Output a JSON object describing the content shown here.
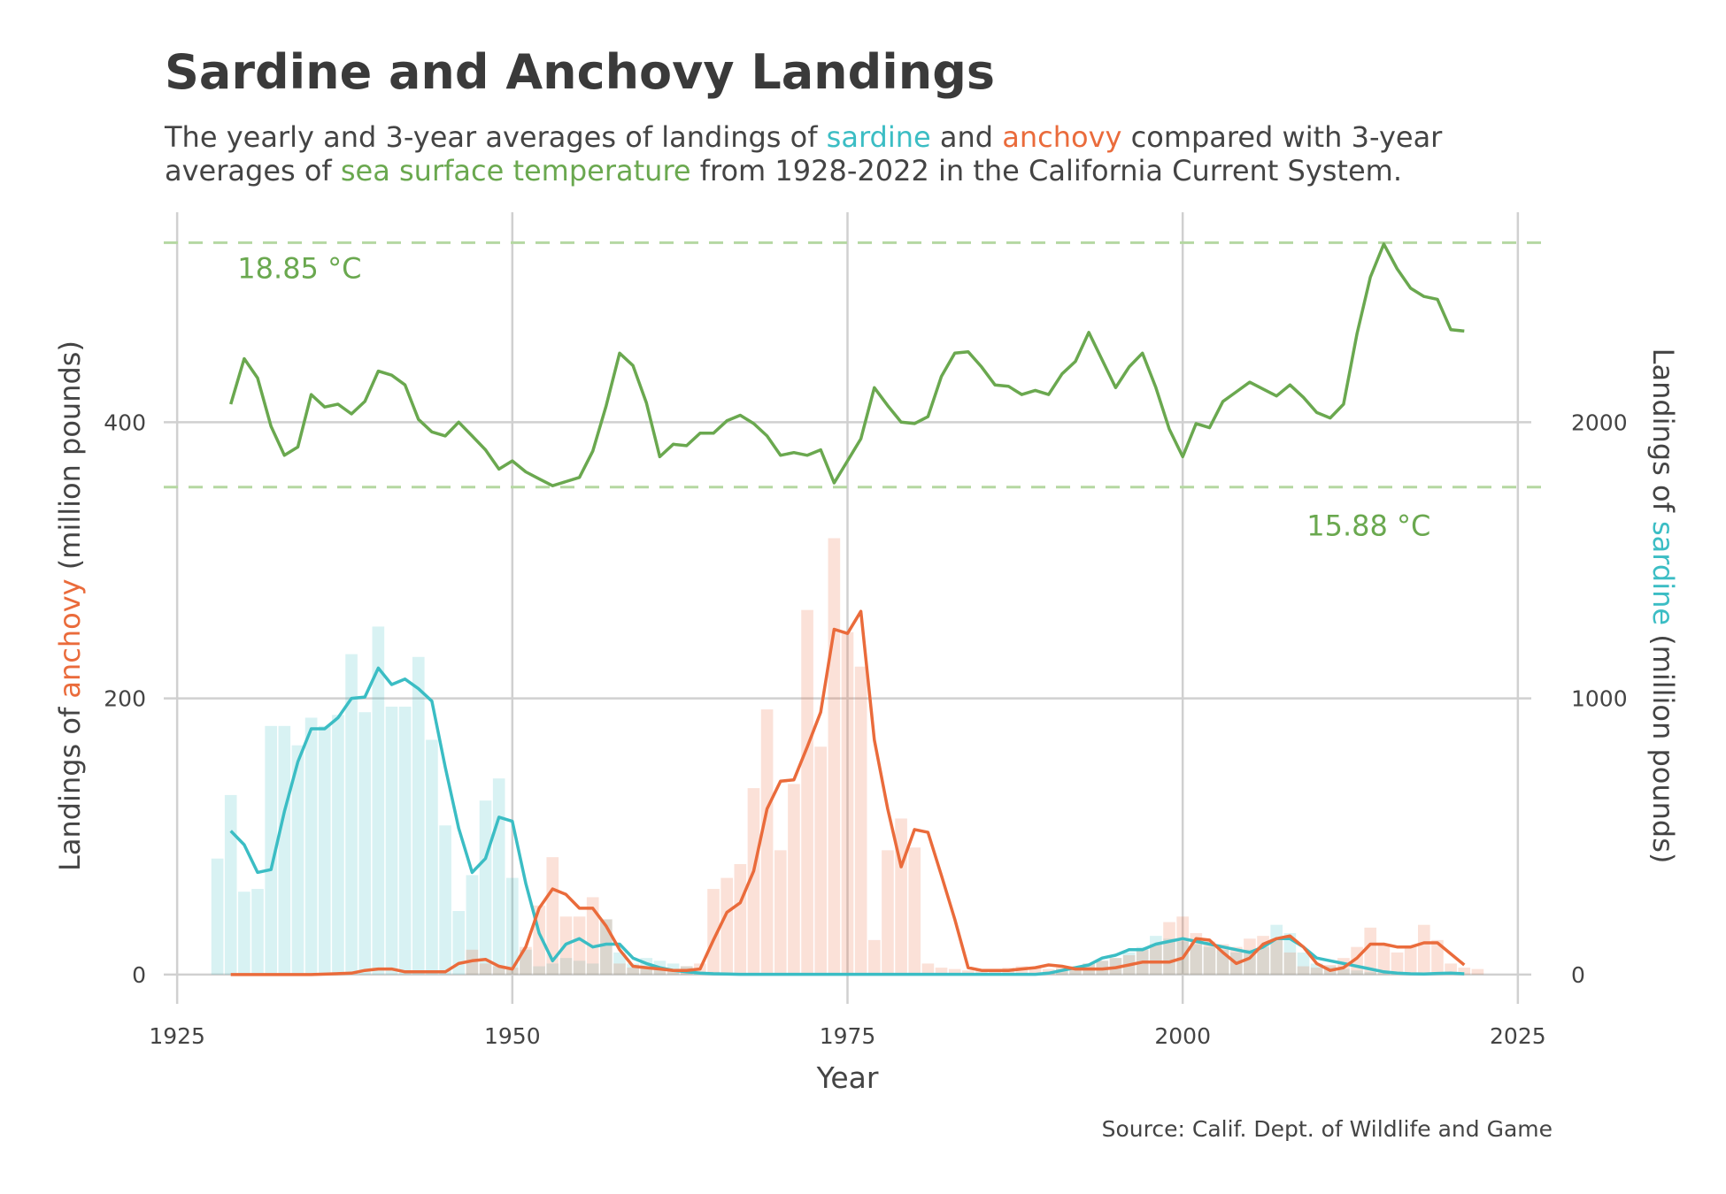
{
  "title": "Sardine and Anchovy Landings",
  "subtitle": {
    "p1": "The yearly and 3-year averages of landings of ",
    "sardine": "sardine",
    "p2": " and ",
    "anchovy": "anchovy",
    "p3": " compared with 3-year averages of ",
    "sst": "sea surface temperature",
    "p4": " from 1928-2022 in the California Current System."
  },
  "source": "Source: Calif. Dept. of Wildlife and Game",
  "colors": {
    "sardine": "#3bbdc4",
    "anchovy": "#ea6b3b",
    "sst": "#6aa84f",
    "sst_ref": "#b5d8a2",
    "grid": "#d0d0d0",
    "text": "#444444"
  },
  "chart_data": {
    "type": "bar+line",
    "xlabel": "Year",
    "ylabel_left": {
      "p1": "Landings of ",
      "hl": "anchovy",
      "p2": " (million pounds)"
    },
    "ylabel_right": {
      "p1": "Landings of ",
      "hl": "sardine",
      "p2": " (million pounds)"
    },
    "xlim": [
      1924,
      2026
    ],
    "ylim_left": [
      -18,
      552
    ],
    "ylim_right": [
      -90,
      2760
    ],
    "xticks": [
      1925,
      1950,
      1975,
      2000,
      2025
    ],
    "yticks_left": [
      0,
      200,
      400
    ],
    "yticks_right": [
      0,
      1000,
      2000
    ],
    "grid": true,
    "sst_reference_lines": [
      {
        "label": "18.85 °C",
        "y_left": 530
      },
      {
        "label": "15.88 °C",
        "y_left": 353
      }
    ],
    "sardine_yearly": {
      "years": [
        1928,
        1929,
        1930,
        1931,
        1932,
        1933,
        1934,
        1935,
        1936,
        1937,
        1938,
        1939,
        1940,
        1941,
        1942,
        1943,
        1944,
        1945,
        1946,
        1947,
        1948,
        1949,
        1950,
        1951,
        1952,
        1953,
        1954,
        1955,
        1956,
        1957,
        1958,
        1959,
        1960,
        1961,
        1962,
        1963,
        1964,
        1965,
        1966,
        1967,
        1968,
        1969,
        1970,
        1971,
        1972,
        1973,
        1974,
        1975,
        1976,
        1977,
        1978,
        1979,
        1980,
        1981,
        1982,
        1983,
        1984,
        1985,
        1986,
        1987,
        1988,
        1989,
        1990,
        1991,
        1992,
        1993,
        1994,
        1995,
        1996,
        1997,
        1998,
        1999,
        2000,
        2001,
        2002,
        2003,
        2004,
        2005,
        2006,
        2007,
        2008,
        2009,
        2010,
        2011,
        2012,
        2013,
        2014,
        2015,
        2016,
        2017,
        2018,
        2019,
        2020,
        2021,
        2022
      ],
      "values": [
        420,
        650,
        300,
        310,
        900,
        900,
        830,
        930,
        900,
        940,
        1160,
        950,
        1260,
        970,
        970,
        1150,
        850,
        540,
        230,
        360,
        630,
        710,
        350,
        90,
        30,
        40,
        60,
        50,
        40,
        200,
        80,
        40,
        60,
        50,
        40,
        30,
        10,
        10,
        5,
        3,
        2,
        2,
        2,
        1,
        1,
        1,
        1,
        1,
        1,
        1,
        1,
        1,
        1,
        1,
        1,
        1,
        1,
        1,
        1,
        2,
        3,
        5,
        10,
        20,
        30,
        40,
        50,
        60,
        80,
        100,
        140,
        130,
        120,
        110,
        100,
        90,
        80,
        90,
        100,
        180,
        150,
        80,
        40,
        30,
        20,
        15,
        10,
        5,
        3,
        2,
        2,
        2,
        2,
        1,
        1
      ]
    },
    "anchovy_yearly": {
      "years": [
        1947,
        1948,
        1949,
        1950,
        1951,
        1952,
        1953,
        1954,
        1955,
        1956,
        1957,
        1958,
        1959,
        1960,
        1961,
        1962,
        1963,
        1964,
        1965,
        1966,
        1967,
        1968,
        1969,
        1970,
        1971,
        1972,
        1973,
        1974,
        1975,
        1976,
        1977,
        1978,
        1979,
        1980,
        1981,
        1982,
        1983,
        1984,
        1985,
        1986,
        1987,
        1988,
        1989,
        1990,
        1991,
        1992,
        1993,
        1994,
        1995,
        1996,
        1997,
        1998,
        1999,
        2000,
        2001,
        2002,
        2003,
        2004,
        2005,
        2006,
        2007,
        2008,
        2009,
        2010,
        2011,
        2012,
        2013,
        2014,
        2015,
        2016,
        2017,
        2018,
        2019,
        2020,
        2021,
        2022
      ],
      "values": [
        18,
        8,
        6,
        5,
        20,
        50,
        85,
        42,
        42,
        56,
        40,
        8,
        5,
        5,
        4,
        3,
        6,
        8,
        62,
        70,
        80,
        135,
        192,
        90,
        138,
        264,
        165,
        316,
        248,
        223,
        25,
        90,
        113,
        92,
        8,
        5,
        4,
        3,
        3,
        4,
        5,
        6,
        5,
        4,
        5,
        6,
        8,
        10,
        12,
        14,
        18,
        22,
        38,
        42,
        30,
        24,
        22,
        20,
        26,
        28,
        25,
        16,
        6,
        5,
        7,
        12,
        20,
        34,
        22,
        16,
        20,
        36,
        25,
        8,
        5,
        4
      ]
    },
    "sardine_avg3": {
      "years": [
        1929,
        1930,
        1931,
        1932,
        1933,
        1934,
        1935,
        1936,
        1937,
        1938,
        1939,
        1940,
        1941,
        1942,
        1943,
        1944,
        1945,
        1946,
        1947,
        1948,
        1949,
        1950,
        1951,
        1952,
        1953,
        1954,
        1955,
        1956,
        1957,
        1958,
        1959,
        1960,
        1961,
        1962,
        1963,
        1964,
        1965,
        1966,
        1967,
        1968,
        1970,
        1975,
        1980,
        1985,
        1989,
        1990,
        1991,
        1992,
        1993,
        1994,
        1995,
        1996,
        1997,
        1998,
        1999,
        2000,
        2001,
        2002,
        2003,
        2004,
        2005,
        2006,
        2007,
        2008,
        2009,
        2010,
        2011,
        2012,
        2013,
        2014,
        2015,
        2016,
        2017,
        2018,
        2019,
        2020,
        2021
      ],
      "values": [
        520,
        470,
        370,
        380,
        590,
        770,
        890,
        890,
        930,
        1000,
        1005,
        1110,
        1050,
        1070,
        1035,
        990,
        750,
        530,
        370,
        420,
        570,
        555,
        330,
        150,
        50,
        110,
        130,
        100,
        110,
        110,
        60,
        40,
        25,
        15,
        10,
        5,
        3,
        2,
        1,
        1,
        1,
        1,
        1,
        1,
        1,
        5,
        15,
        25,
        35,
        60,
        70,
        90,
        90,
        110,
        120,
        130,
        120,
        110,
        100,
        90,
        80,
        100,
        130,
        130,
        100,
        60,
        50,
        40,
        30,
        20,
        10,
        5,
        3,
        2,
        4,
        5,
        3
      ]
    },
    "anchovy_avg3": {
      "years": [
        1929,
        1935,
        1938,
        1939,
        1940,
        1941,
        1942,
        1943,
        1944,
        1945,
        1946,
        1947,
        1948,
        1949,
        1950,
        1951,
        1952,
        1953,
        1954,
        1955,
        1956,
        1957,
        1958,
        1959,
        1960,
        1961,
        1962,
        1963,
        1964,
        1965,
        1966,
        1967,
        1968,
        1969,
        1970,
        1971,
        1972,
        1973,
        1974,
        1975,
        1976,
        1977,
        1978,
        1979,
        1980,
        1981,
        1982,
        1983,
        1984,
        1985,
        1986,
        1987,
        1988,
        1989,
        1990,
        1991,
        1992,
        1993,
        1994,
        1995,
        1996,
        1997,
        1998,
        1999,
        2000,
        2001,
        2002,
        2003,
        2004,
        2005,
        2006,
        2007,
        2008,
        2009,
        2010,
        2011,
        2012,
        2013,
        2014,
        2015,
        2016,
        2017,
        2018,
        2019,
        2020,
        2021
      ],
      "values": [
        0,
        0,
        1,
        3,
        4,
        4,
        2,
        2,
        2,
        2,
        8,
        10,
        11,
        6,
        4,
        20,
        48,
        62,
        58,
        48,
        48,
        35,
        18,
        6,
        5,
        4,
        3,
        3,
        4,
        25,
        45,
        52,
        75,
        120,
        140,
        141,
        165,
        190,
        250,
        247,
        263,
        170,
        120,
        78,
        105,
        103,
        72,
        40,
        5,
        3,
        3,
        3,
        4,
        5,
        7,
        6,
        4,
        4,
        4,
        5,
        7,
        9,
        9,
        9,
        12,
        26,
        25,
        16,
        8,
        12,
        22,
        26,
        28,
        20,
        8,
        3,
        5,
        12,
        22,
        22,
        20,
        20,
        23,
        23,
        15,
        7
      ]
    },
    "sst_avg3": {
      "years": [
        1929,
        1930,
        1931,
        1932,
        1933,
        1934,
        1935,
        1936,
        1937,
        1938,
        1939,
        1940,
        1941,
        1942,
        1943,
        1944,
        1945,
        1946,
        1947,
        1948,
        1949,
        1950,
        1951,
        1952,
        1953,
        1954,
        1955,
        1956,
        1957,
        1958,
        1959,
        1960,
        1961,
        1962,
        1963,
        1964,
        1965,
        1966,
        1967,
        1968,
        1969,
        1970,
        1971,
        1972,
        1973,
        1974,
        1975,
        1976,
        1977,
        1978,
        1979,
        1980,
        1981,
        1982,
        1983,
        1984,
        1985,
        1986,
        1987,
        1988,
        1989,
        1990,
        1991,
        1992,
        1993,
        1994,
        1995,
        1996,
        1997,
        1998,
        1999,
        2000,
        2001,
        2002,
        2003,
        2004,
        2005,
        2006,
        2007,
        2008,
        2009,
        2010,
        2011,
        2012,
        2013,
        2014,
        2015,
        2016,
        2017,
        2018,
        2019,
        2020,
        2021
      ],
      "values": [
        413,
        446,
        432,
        397,
        376,
        382,
        420,
        411,
        413,
        406,
        415,
        437,
        434,
        427,
        402,
        393,
        390,
        400,
        390,
        380,
        366,
        372,
        364,
        359,
        354,
        357,
        360,
        379,
        412,
        450,
        441,
        414,
        375,
        384,
        383,
        392,
        392,
        401,
        405,
        399,
        390,
        376,
        378,
        376,
        380,
        356,
        372,
        388,
        425,
        412,
        400,
        399,
        404,
        433,
        450,
        451,
        440,
        427,
        426,
        420,
        423,
        420,
        435,
        444,
        465,
        445,
        425,
        440,
        450,
        425,
        395,
        375,
        399,
        396,
        415,
        422,
        429,
        424,
        419,
        427,
        418,
        407,
        403,
        413,
        464,
        505,
        529,
        511,
        497,
        491,
        489,
        467,
        466
      ]
    }
  }
}
